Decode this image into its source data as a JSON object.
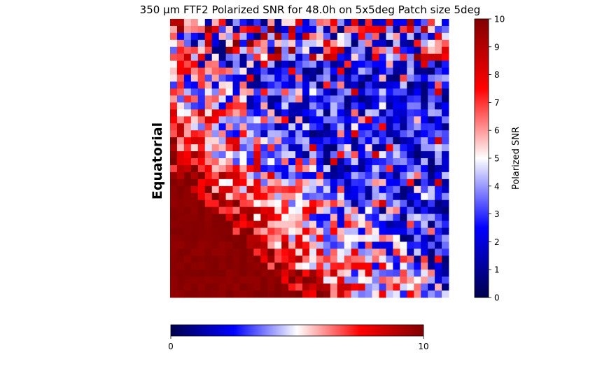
{
  "chart_data": {
    "type": "heatmap",
    "title": "350 μm FTF2 Polarized SNR for 48.0h on 5x5deg Patch size 5deg",
    "row_label": "Equatorial",
    "colorbar": {
      "label": "Polarized SNR",
      "range": [
        0,
        10
      ],
      "ticks": [
        0,
        1,
        2,
        3,
        4,
        5,
        6,
        7,
        8,
        9,
        10
      ],
      "cmap": "seismic"
    },
    "bottom_colorbar": {
      "range": [
        0,
        10
      ],
      "ticks": [
        0,
        10
      ]
    },
    "grid": {
      "rows": 40,
      "cols": 40,
      "value_min": 0,
      "value_max": 10,
      "description_rows": [
        "Top-right region mostly low SNR (blue 1-4) with scattered red/white cells",
        "Lower-left triangular region saturated high SNR (dark red ~10)",
        "Diagonal transition band of mixed red/white/blue from left-middle to bottom-right"
      ]
    }
  },
  "colors": {
    "cmap_stops": [
      "#00004c",
      "#0000ff",
      "#ffffff",
      "#ff0000",
      "#800000"
    ]
  }
}
